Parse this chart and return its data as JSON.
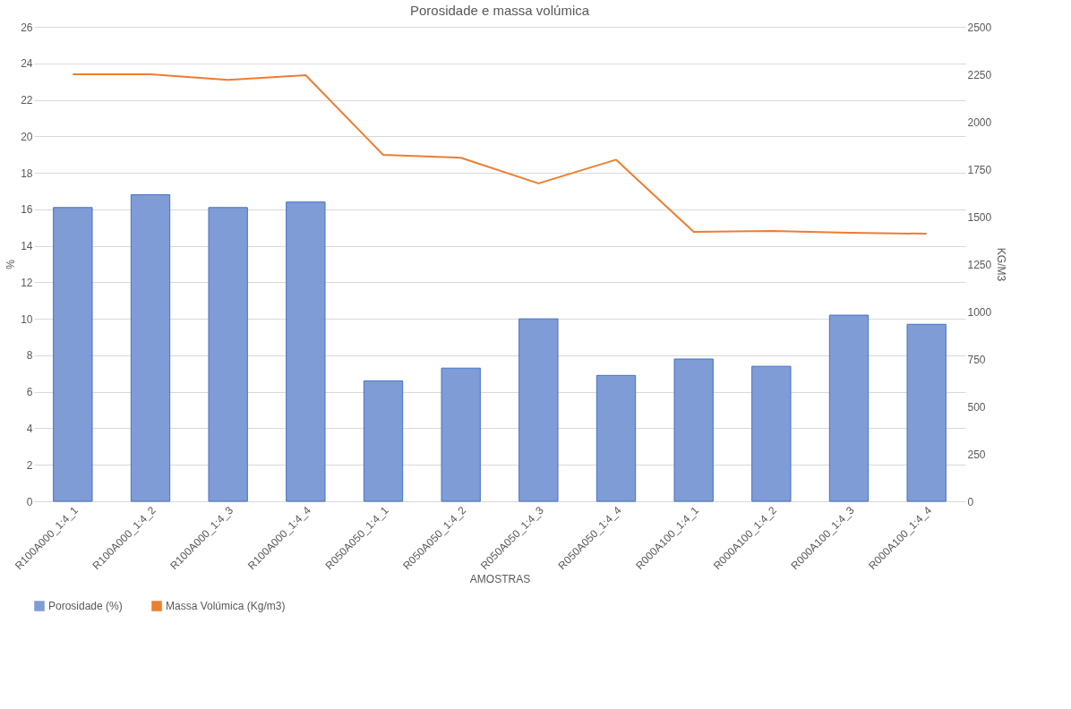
{
  "chart_data": {
    "type": "bar",
    "title": "Porosidade e massa volúmica",
    "xlabel": "AMOSTRAS",
    "ylabel": "%",
    "y2label": "KG/M3",
    "categories": [
      "R100A000_1:4_1",
      "R100A000_1:4_2",
      "R100A000_1:4_3",
      "R100A000_1:4_4",
      "R050A050_1:4_1",
      "R050A050_1:4_2",
      "R050A050_1:4_3",
      "R050A050_1:4_4",
      "R000A100_1:4_1",
      "R000A100_1:4_2",
      "R000A100_1:4_3",
      "R000A100_1:4_4"
    ],
    "series": [
      {
        "name": "Porosidade (%)",
        "color": "#7f9cd6",
        "values": [
          16.1,
          16.8,
          16.1,
          16.4,
          6.6,
          7.3,
          10.0,
          6.9,
          7.8,
          7.4,
          10.2,
          9.7
        ]
      },
      {
        "name": "Massa Volúmica (Kg/m3)",
        "type": "line",
        "axis": "y2",
        "color": "#ed7d31",
        "values": [
          2250,
          2250,
          2220,
          2245,
          1825,
          1810,
          1675,
          1800,
          1420,
          1425,
          1415,
          1410
        ]
      }
    ],
    "ylim": [
      0,
      26
    ],
    "yticks": [
      0,
      2,
      4,
      6,
      8,
      10,
      12,
      14,
      16,
      18,
      20,
      22,
      24,
      26
    ],
    "y2lim": [
      0,
      2500
    ],
    "y2ticks": [
      0,
      250,
      500,
      750,
      1000,
      1250,
      1500,
      1750,
      2000,
      2250,
      2500
    ],
    "grid": "y",
    "legend": "bottom",
    "marker": "none",
    "line_style": "solid"
  }
}
